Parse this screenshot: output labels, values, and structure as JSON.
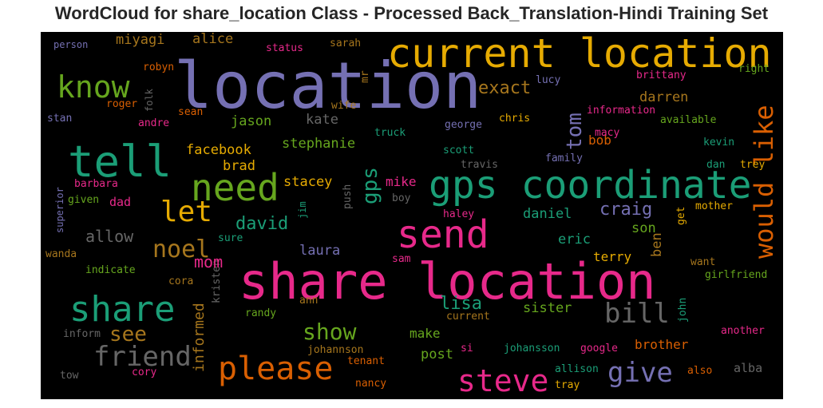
{
  "title": "WordCloud for share_location Class - Processed Back_Translation-Hindi Training Set",
  "colors": {
    "background": "#000000",
    "teal": "#1b9e77",
    "orange": "#d95f02",
    "purple": "#7570b3",
    "pink": "#e7298a",
    "green": "#66a61e",
    "gold": "#e6ab02",
    "brown": "#a6761d",
    "gray": "#666666"
  },
  "words": {
    "location": "location",
    "share_location": "share location",
    "current_location": "current location",
    "gps_coordinate": "gps coordinate",
    "tell": "tell",
    "need": "need",
    "send": "send",
    "share": "share",
    "please": "please",
    "know": "know",
    "steve": "steve",
    "friend": "friend",
    "would_like": "would like",
    "let": "let",
    "give": "give",
    "bill": "bill",
    "show": "show",
    "noel": "noel",
    "see": "see",
    "gps": "gps",
    "tom": "tom",
    "exact": "exact",
    "allow": "allow",
    "craig": "craig",
    "david": "david",
    "lisa": "lisa",
    "mom": "mom",
    "informed": "informed",
    "stephanie": "stephanie",
    "facebook": "facebook",
    "miyagi": "miyagi",
    "alice": "alice",
    "jason": "jason",
    "kate": "kate",
    "darren": "darren",
    "brad": "brad",
    "stacey": "stacey",
    "mike": "mike",
    "daniel": "daniel",
    "eric": "eric",
    "son": "son",
    "terry": "terry",
    "ben": "ben",
    "bob": "bob",
    "laura": "laura",
    "sister": "sister",
    "make": "make",
    "post": "post",
    "brother": "brother",
    "alba": "alba",
    "dad": "dad",
    "person": "person",
    "status": "status",
    "sarah": "sarah",
    "mr": "mr",
    "robyn": "robyn",
    "lucy": "lucy",
    "brittany": "brittany",
    "right": "right",
    "folk": "folk",
    "wife": "wife",
    "roger": "roger",
    "sean": "sean",
    "information": "information",
    "stan": "stan",
    "andre": "andre",
    "chris": "chris",
    "available": "available",
    "george": "george",
    "truck": "truck",
    "scott": "scott",
    "macy": "macy",
    "kevin": "kevin",
    "family": "family",
    "travis": "travis",
    "dan": "dan",
    "trey": "trey",
    "barbara": "barbara",
    "superior": "superior",
    "given": "given",
    "jim": "jim",
    "push": "push",
    "boy": "boy",
    "haley": "haley",
    "get": "get",
    "mother": "mother",
    "sure": "sure",
    "wanda": "wanda",
    "sam": "sam",
    "want": "want",
    "indicate": "indicate",
    "girlfriend": "girlfriend",
    "cora": "cora",
    "kristen": "kristen",
    "ann": "ann",
    "randy": "randy",
    "current": "current",
    "john": "john",
    "inform": "inform",
    "another": "another",
    "johannson": "johannson",
    "si": "si",
    "johansson": "johansson",
    "google": "google",
    "tenant": "tenant",
    "allison": "allison",
    "also": "also",
    "tow": "tow",
    "cory": "cory",
    "nancy": "nancy",
    "tray": "tray"
  }
}
